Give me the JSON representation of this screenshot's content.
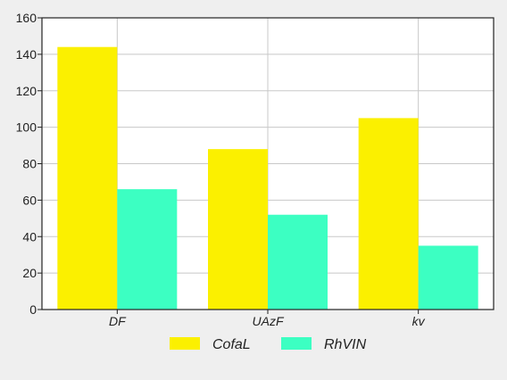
{
  "chart_data": {
    "type": "bar",
    "categories": [
      "DF",
      "UAzF",
      "kv"
    ],
    "series": [
      {
        "name": "CofaL",
        "values": [
          144,
          88,
          105
        ],
        "color": "#fbf000"
      },
      {
        "name": "RhVIN",
        "values": [
          66,
          52,
          35
        ],
        "color": "#3cffc2"
      }
    ],
    "ylim": [
      0,
      160
    ],
    "yticks": [
      0,
      20,
      40,
      60,
      80,
      100,
      120,
      140,
      160
    ],
    "grid": true,
    "legend_position": "bottom-center",
    "title": "",
    "xlabel": "",
    "ylabel": ""
  },
  "colors": {
    "background": "#efefef",
    "plot_background": "#ffffff",
    "grid": "#c8c8c8",
    "axis": "#222222"
  }
}
